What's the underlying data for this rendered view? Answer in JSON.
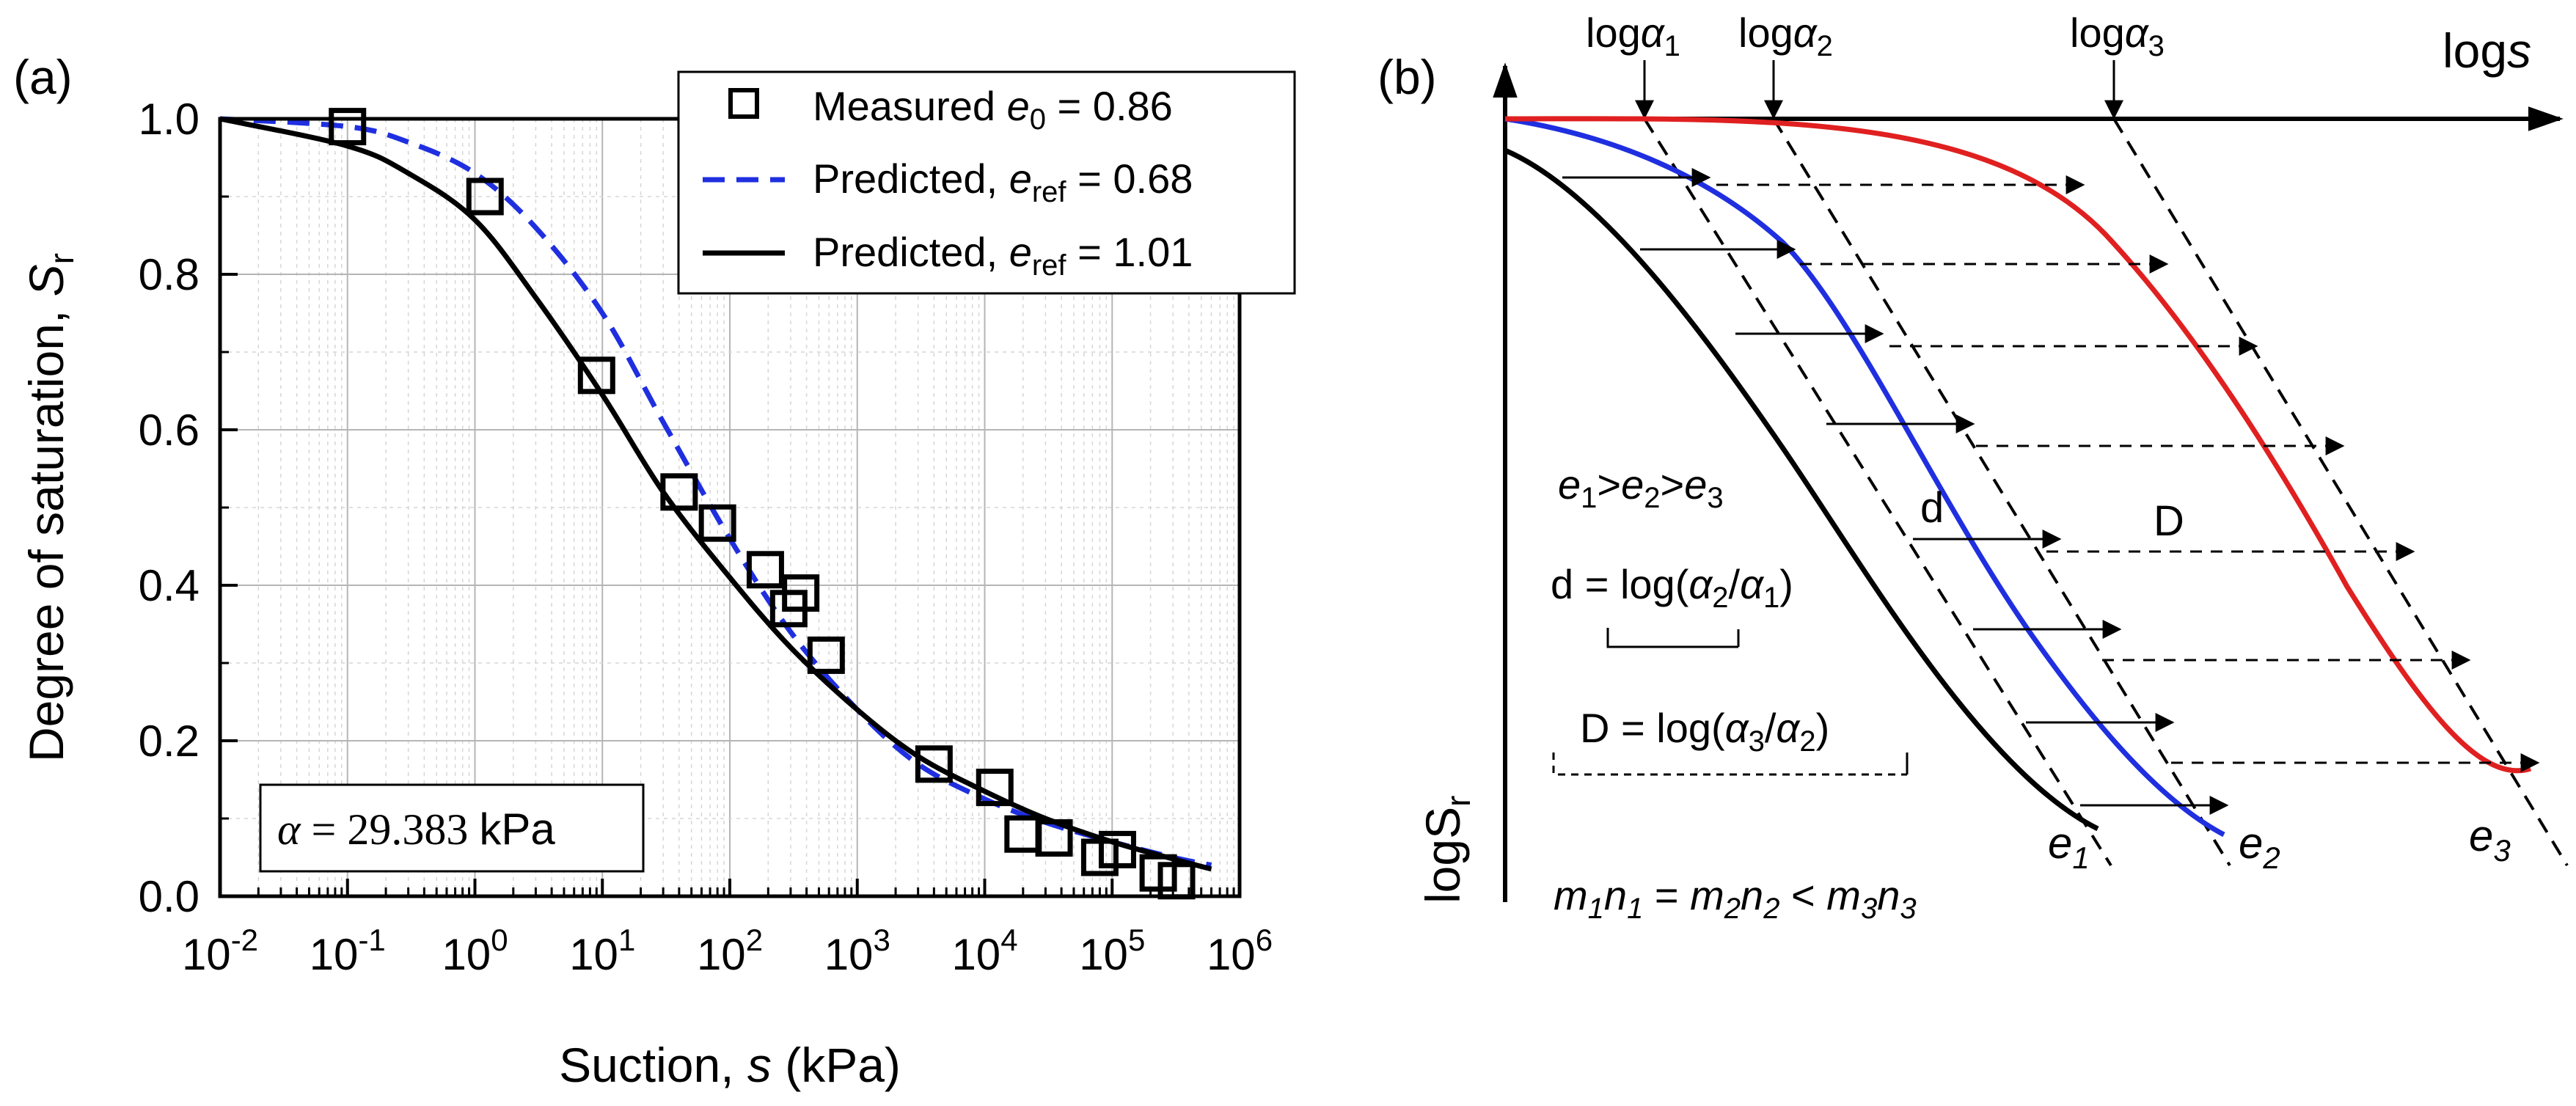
{
  "chart_data": [
    {
      "panel": "(a)",
      "type": "scatter",
      "xlabel": "Suction, s (kPa)",
      "ylabel": "Degree of saturation, Sr",
      "xscale": "log",
      "xlim": [
        0.01,
        1000000
      ],
      "ylim": [
        0.0,
        1.0
      ],
      "x_ticks": [
        "10-2",
        "10-1",
        "100",
        "101",
        "102",
        "103",
        "104",
        "105",
        "106"
      ],
      "y_ticks": [
        "0.0",
        "0.2",
        "0.4",
        "0.6",
        "0.8",
        "1.0"
      ],
      "grid": true,
      "legend_position": "top-right",
      "legend": [
        {
          "text": "Measured e0 = 0.86",
          "marker": "open-square",
          "color": "#000000"
        },
        {
          "text": "Predicted, eref = 0.68",
          "line": "dashed",
          "color": "#1f2fe0"
        },
        {
          "text": "Predicted, eref = 1.01",
          "line": "solid",
          "color": "#000000"
        }
      ],
      "annotation": "α = 29.383 kPa",
      "series": [
        {
          "name": "Measured e0 = 0.86",
          "kind": "markers",
          "x": [
            0.1,
            1.2,
            9,
            40,
            80,
            190,
            290,
            360,
            570,
            4000,
            12000,
            20000,
            35000,
            80000,
            110000,
            230000,
            320000
          ],
          "y": [
            0.99,
            0.9,
            0.67,
            0.52,
            0.48,
            0.42,
            0.37,
            0.39,
            0.31,
            0.17,
            0.14,
            0.08,
            0.075,
            0.05,
            0.06,
            0.03,
            0.02
          ]
        },
        {
          "name": "Predicted, eref = 0.68",
          "kind": "line",
          "style": "dashed",
          "color": "#1f2fe0",
          "x": [
            0.01,
            0.1,
            0.3,
            1,
            3,
            10,
            30,
            100,
            300,
            1000,
            3000,
            10000,
            30000,
            100000,
            300000,
            600000
          ],
          "y": [
            1.0,
            0.99,
            0.97,
            0.93,
            0.86,
            0.75,
            0.61,
            0.46,
            0.34,
            0.24,
            0.17,
            0.125,
            0.095,
            0.07,
            0.05,
            0.04
          ]
        },
        {
          "name": "Predicted, eref = 1.01",
          "kind": "line",
          "style": "solid",
          "color": "#000000",
          "x": [
            0.01,
            0.1,
            0.3,
            1,
            3,
            10,
            30,
            100,
            300,
            1000,
            3000,
            10000,
            30000,
            100000,
            300000,
            600000
          ],
          "y": [
            1.0,
            0.965,
            0.93,
            0.87,
            0.77,
            0.645,
            0.52,
            0.41,
            0.32,
            0.24,
            0.18,
            0.135,
            0.1,
            0.07,
            0.048,
            0.035
          ]
        }
      ]
    },
    {
      "panel": "(b)",
      "type": "line",
      "xlabel": "logs",
      "ylabel": "logSr",
      "xscale": "log",
      "grid": false,
      "top_labels": [
        "logα1",
        "logα2",
        "logα3"
      ],
      "curve_labels": [
        "e1",
        "e2",
        "e3"
      ],
      "shift_labels": [
        "d",
        "D"
      ],
      "annotations": [
        "e1>e2>e3",
        "d = log(α2/α1)",
        "D = log(α3/α2)",
        "m1n1 = m2n2 < m3n3"
      ],
      "series_colors": {
        "e1": "#000000",
        "e2": "#1f2fe0",
        "e3": "#e02020"
      }
    }
  ]
}
